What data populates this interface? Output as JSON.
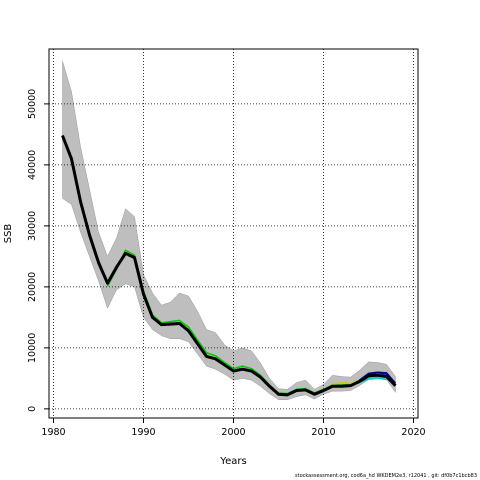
{
  "chart_data": {
    "type": "line",
    "xlabel": "Years",
    "ylabel": "SSB",
    "xlim": [
      1979.5,
      2020.5
    ],
    "ylim": [
      -1500,
      59000
    ],
    "xticks": [
      1980,
      1990,
      2000,
      2010,
      2020
    ],
    "yticks": [
      0,
      10000,
      20000,
      30000,
      40000,
      50000
    ],
    "grid": true,
    "legend": "none",
    "colors": {
      "band": "#bebebe",
      "main_line": "#000000",
      "accent_line": "#ff0000",
      "retro_colors": [
        "#ff0000",
        "#00cd00",
        "#0000ff",
        "#00cdcd",
        "#cd00cd",
        "#cdcd00",
        "#8b0000"
      ]
    },
    "band": {
      "x": [
        1981,
        1982,
        1983,
        1984,
        1985,
        1986,
        1987,
        1988,
        1989,
        1990,
        1991,
        1992,
        1993,
        1994,
        1995,
        1996,
        1997,
        1998,
        1999,
        2000,
        2001,
        2002,
        2003,
        2004,
        2005,
        2006,
        2007,
        2008,
        2009,
        2010,
        2011,
        2012,
        2013,
        2014,
        2015,
        2016,
        2017,
        2018
      ],
      "upper": [
        57000,
        52000,
        43000,
        36000,
        29000,
        25000,
        28000,
        32800,
        31500,
        22000,
        19000,
        17000,
        17500,
        19000,
        18500,
        16000,
        13000,
        12500,
        10500,
        9500,
        10000,
        9500,
        7500,
        5000,
        3300,
        3200,
        4300,
        4700,
        3200,
        4000,
        5500,
        5300,
        5200,
        6300,
        7700,
        7600,
        7300,
        5300
      ],
      "lower": [
        34500,
        33500,
        29000,
        25000,
        21000,
        16500,
        19500,
        20500,
        20000,
        15000,
        13000,
        12000,
        11500,
        11500,
        11000,
        9000,
        7000,
        6500,
        5700,
        4700,
        5000,
        4700,
        3700,
        2500,
        1500,
        1500,
        2000,
        2300,
        1600,
        2400,
        2900,
        2900,
        3000,
        3800,
        4800,
        4900,
        4800,
        2700
      ]
    },
    "series": [
      {
        "color": "#000000",
        "x": [
          1981,
          1982,
          1983,
          1984,
          1985,
          1986,
          1987,
          1988,
          1989,
          1990,
          1991,
          1992,
          1993,
          1994,
          1995,
          1996,
          1997,
          1998,
          1999,
          2000,
          2001,
          2002,
          2003,
          2004,
          2005,
          2006,
          2007,
          2008,
          2009,
          2010,
          2011,
          2012,
          2013,
          2014,
          2015,
          2016,
          2017,
          2018
        ],
        "y": [
          44800,
          41000,
          34000,
          28500,
          24000,
          20600,
          23200,
          25500,
          24800,
          18800,
          15000,
          13800,
          13900,
          14000,
          12800,
          10700,
          8600,
          8200,
          7200,
          6200,
          6500,
          6200,
          5200,
          3700,
          2400,
          2300,
          3000,
          3100,
          2400,
          3000,
          3700,
          3700,
          3800,
          4500,
          5400,
          5500,
          5300,
          3800
        ]
      },
      {
        "color": "#ff0000",
        "x": [
          1981,
          1982,
          1983,
          1984,
          1985,
          1986,
          1987,
          1988,
          1989,
          1990,
          1991,
          1992,
          1993,
          1994,
          1995,
          1996,
          1997,
          1998,
          1999,
          2000,
          2001,
          2002,
          2003,
          2004,
          2005,
          2006,
          2007,
          2008,
          2009,
          2010,
          2011
        ],
        "y": [
          44900,
          41100,
          34100,
          28600,
          24100,
          20700,
          23300,
          25600,
          24900,
          18900,
          15100,
          13900,
          14000,
          14100,
          12900,
          10800,
          8700,
          8300,
          7300,
          6300,
          6600,
          6300,
          5300,
          3800,
          2500,
          2400,
          3100,
          3200,
          2500,
          3100,
          3800
        ]
      },
      {
        "color": "#00cd00",
        "x": [
          1986,
          1987,
          1988,
          1989,
          1990,
          1991,
          1992,
          1993,
          1994,
          1995,
          1996,
          1997,
          1998,
          1999,
          2000,
          2001,
          2002,
          2003,
          2004,
          2005,
          2006,
          2007,
          2008,
          2009,
          2010,
          2011,
          2012,
          2013,
          2014
        ],
        "y": [
          20100,
          22900,
          26000,
          25200,
          19300,
          15400,
          14100,
          14300,
          14500,
          13400,
          11300,
          9200,
          8700,
          7600,
          6600,
          7000,
          6600,
          5500,
          3900,
          2600,
          2500,
          3200,
          3300,
          2600,
          3200,
          3900,
          3900,
          4000,
          4600
        ]
      },
      {
        "color": "#0000ff",
        "x": [
          2012,
          2013,
          2014,
          2015,
          2016,
          2017,
          2018
        ],
        "y": [
          3800,
          3900,
          4600,
          5600,
          5900,
          5700,
          3900
        ]
      },
      {
        "color": "#00cdcd",
        "x": [
          2012,
          2013,
          2014,
          2015,
          2016,
          2017
        ],
        "y": [
          3700,
          3800,
          4300,
          4900,
          5100,
          4800
        ]
      },
      {
        "color": "#cdcd00",
        "x": [
          2011,
          2012,
          2013,
          2014
        ],
        "y": [
          4000,
          4300,
          4100,
          4700
        ]
      },
      {
        "color": "#000080",
        "x": [
          2014,
          2015,
          2016,
          2017,
          2018
        ],
        "y": [
          4700,
          5800,
          6000,
          5900,
          4200
        ]
      }
    ]
  },
  "footer_text": "stockassessment.org, cod6a_hd  WKDEM2e3, r12041 , git: df0b7c1bcb83"
}
